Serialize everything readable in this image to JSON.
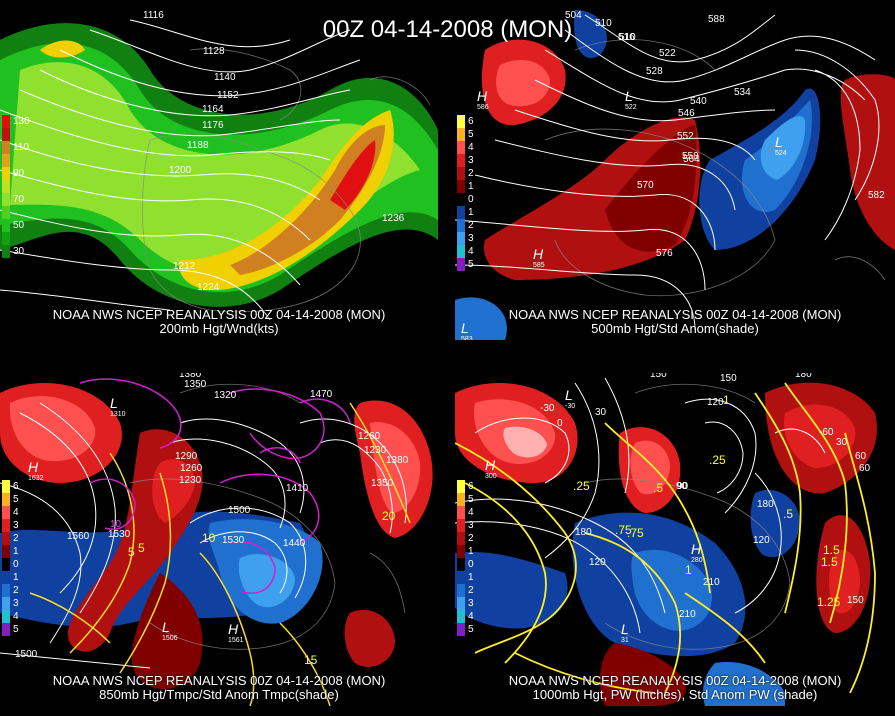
{
  "header": {
    "title": "00Z 04-14-2008 (MON)"
  },
  "panels": [
    {
      "id": "p200",
      "caption1": "NOAA NWS NCEP REANALYSIS 00Z 04-14-2008 (MON)",
      "caption2": "200mb Hgt/Wnd(kts)",
      "legend": [
        {
          "label": "130",
          "color": "#e01010"
        },
        {
          "label": "110",
          "color": "#d08020"
        },
        {
          "label": "90",
          "color": "#f0d000"
        },
        {
          "label": "70",
          "color": "#90e030"
        },
        {
          "label": "50",
          "color": "#20c020"
        },
        {
          "label": "30",
          "color": "#108010"
        }
      ],
      "contour_labels": [
        "1116",
        "1128",
        "1140",
        "1152",
        "1164",
        "1176",
        "1188",
        "1200",
        "1212",
        "1224",
        "1236"
      ]
    },
    {
      "id": "p500",
      "caption1": "NOAA NWS NCEP REANALYSIS 00Z 04-14-2008 (MON)",
      "caption2": "500mb Hgt/Std Anom(shade)",
      "legend": [
        {
          "label": "6",
          "color": "#ffff40"
        },
        {
          "label": "5",
          "color": "#ffb020"
        },
        {
          "label": "4",
          "color": "#ff5050"
        },
        {
          "label": "3",
          "color": "#e02020"
        },
        {
          "label": "2",
          "color": "#b01010"
        },
        {
          "label": "1",
          "color": "#800000"
        },
        {
          "label": "0",
          "color": "#000000"
        },
        {
          "label": "1",
          "color": "#1040a0"
        },
        {
          "label": "2",
          "color": "#2070d0"
        },
        {
          "label": "3",
          "color": "#40a0f0"
        },
        {
          "label": "4",
          "color": "#20c0d0"
        },
        {
          "label": "5",
          "color": "#8020c0"
        }
      ],
      "contour_labels": [
        "504",
        "510",
        "516",
        "522",
        "528",
        "534",
        "540",
        "546",
        "552",
        "558",
        "564",
        "570",
        "576",
        "582",
        "588",
        "510",
        "516"
      ],
      "highs_lows": [
        {
          "type": "H",
          "value": "586"
        },
        {
          "type": "H",
          "value": "585"
        },
        {
          "type": "L",
          "value": "522"
        },
        {
          "type": "L",
          "value": "524"
        },
        {
          "type": "L",
          "value": "583"
        }
      ]
    },
    {
      "id": "p850",
      "caption1": "NOAA NWS NCEP REANALYSIS 00Z 04-14-2008 (MON)",
      "caption2": "850mb Hgt/Tmpc/Std Anom Tmpc(shade)",
      "legend": [
        {
          "label": "6",
          "color": "#ffff40"
        },
        {
          "label": "5",
          "color": "#ffb020"
        },
        {
          "label": "4",
          "color": "#ff5050"
        },
        {
          "label": "3",
          "color": "#e02020"
        },
        {
          "label": "2",
          "color": "#b01010"
        },
        {
          "label": "1",
          "color": "#800000"
        },
        {
          "label": "0",
          "color": "#000000"
        },
        {
          "label": "1",
          "color": "#1040a0"
        },
        {
          "label": "2",
          "color": "#2070d0"
        },
        {
          "label": "3",
          "color": "#40a0f0"
        },
        {
          "label": "4",
          "color": "#20c0d0"
        },
        {
          "label": "5",
          "color": "#8020c0"
        }
      ],
      "contour_labels": [
        "1380",
        "1350",
        "1320",
        "1290",
        "1260",
        "1230",
        "1470",
        "1500",
        "1530",
        "1440",
        "1410",
        "1560",
        "1530",
        "1500",
        "1380",
        "1350",
        "1260",
        "1230"
      ],
      "temp_labels": [
        "5",
        "5",
        "10",
        "15",
        "20",
        "10"
      ],
      "highs_lows": [
        {
          "type": "H",
          "value": "1632"
        },
        {
          "type": "L",
          "value": "1506"
        },
        {
          "type": "H",
          "value": "1561"
        },
        {
          "type": "L",
          "value": "1310"
        }
      ]
    },
    {
      "id": "p1000",
      "caption1": "NOAA NWS NCEP REANALYSIS 00Z 04-14-2008 (MON)",
      "caption2": "1000mb Hgt, PW (inches), Std Anom PW (shade)",
      "legend": [
        {
          "label": "6",
          "color": "#ffff40"
        },
        {
          "label": "5",
          "color": "#ffb020"
        },
        {
          "label": "4",
          "color": "#ff5050"
        },
        {
          "label": "3",
          "color": "#e02020"
        },
        {
          "label": "2",
          "color": "#b01010"
        },
        {
          "label": "1",
          "color": "#800000"
        },
        {
          "label": "0",
          "color": "#000000"
        },
        {
          "label": "1",
          "color": "#1040a0"
        },
        {
          "label": "2",
          "color": "#2070d0"
        },
        {
          "label": "3",
          "color": "#40a0f0"
        },
        {
          "label": "4",
          "color": "#20c0d0"
        },
        {
          "label": "5",
          "color": "#8020c0"
        }
      ],
      "contour_labels": [
        "150",
        "180",
        "120",
        "30",
        "-30",
        "0",
        "90",
        "180",
        "120",
        "210",
        "210",
        "150",
        "-60",
        "30",
        "60",
        "120",
        "180",
        "150",
        "90",
        "60"
      ],
      "pw_labels": [
        ".25",
        ".5",
        ".75",
        "1",
        "1.5",
        ".25",
        ".5",
        ".75",
        "1",
        "1.5",
        "1.25"
      ],
      "highs_lows": [
        {
          "type": "H",
          "value": "300"
        },
        {
          "type": "H",
          "value": "280"
        },
        {
          "type": "L",
          "value": "-30"
        },
        {
          "type": "L",
          "value": "31"
        }
      ]
    }
  ]
}
